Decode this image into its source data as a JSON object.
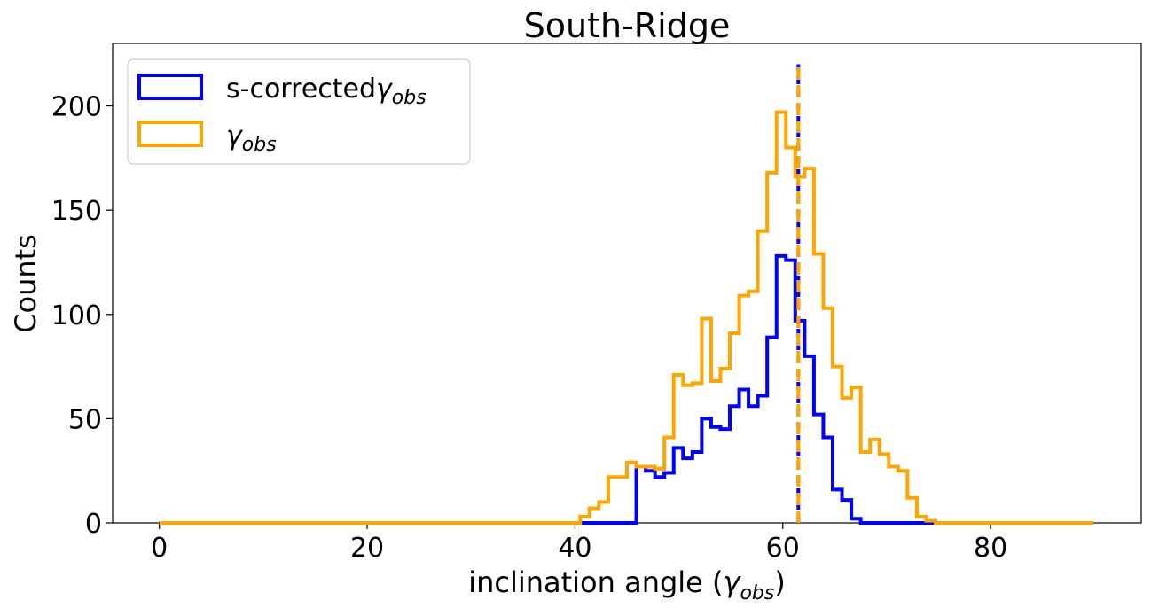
{
  "chart_data": {
    "type": "histogram",
    "title": "South-Ridge",
    "xlabel": "inclination angle (γ_obs)",
    "ylabel": "Counts",
    "xlim": [
      -4.5,
      94.5
    ],
    "ylim": [
      0,
      230
    ],
    "xticks": [
      0,
      20,
      40,
      60,
      80
    ],
    "yticks": [
      0,
      50,
      100,
      150,
      200
    ],
    "legend_position": "upper-left",
    "bin_width": 0.9,
    "series": [
      {
        "name": "s-corrected γ_obs",
        "color": "#0000ff",
        "bins": [
          {
            "x0": 0,
            "x1": 45.9,
            "y": 0
          },
          {
            "x0": 45.9,
            "x1": 46.8,
            "y": 27
          },
          {
            "x0": 46.8,
            "x1": 47.7,
            "y": 25
          },
          {
            "x0": 47.7,
            "x1": 48.6,
            "y": 22
          },
          {
            "x0": 48.6,
            "x1": 49.5,
            "y": 24
          },
          {
            "x0": 49.5,
            "x1": 50.4,
            "y": 36
          },
          {
            "x0": 50.4,
            "x1": 51.3,
            "y": 31
          },
          {
            "x0": 51.3,
            "x1": 52.2,
            "y": 34
          },
          {
            "x0": 52.2,
            "x1": 53.1,
            "y": 50
          },
          {
            "x0": 53.1,
            "x1": 54.0,
            "y": 46
          },
          {
            "x0": 54.0,
            "x1": 54.9,
            "y": 45
          },
          {
            "x0": 54.9,
            "x1": 55.8,
            "y": 56
          },
          {
            "x0": 55.8,
            "x1": 56.7,
            "y": 64
          },
          {
            "x0": 56.7,
            "x1": 57.6,
            "y": 56
          },
          {
            "x0": 57.6,
            "x1": 58.5,
            "y": 61
          },
          {
            "x0": 58.5,
            "x1": 59.4,
            "y": 89
          },
          {
            "x0": 59.4,
            "x1": 60.3,
            "y": 128
          },
          {
            "x0": 60.3,
            "x1": 61.2,
            "y": 126
          },
          {
            "x0": 61.2,
            "x1": 62.1,
            "y": 97
          },
          {
            "x0": 62.1,
            "x1": 63.0,
            "y": 80
          },
          {
            "x0": 63.0,
            "x1": 63.9,
            "y": 52
          },
          {
            "x0": 63.9,
            "x1": 64.8,
            "y": 41
          },
          {
            "x0": 64.8,
            "x1": 65.7,
            "y": 16
          },
          {
            "x0": 65.7,
            "x1": 66.6,
            "y": 11
          },
          {
            "x0": 66.6,
            "x1": 67.5,
            "y": 2
          },
          {
            "x0": 67.5,
            "x1": 89.9,
            "y": 0
          }
        ]
      },
      {
        "name": "γ_obs",
        "color": "#ffa500",
        "bins": [
          {
            "x0": 0,
            "x1": 40.5,
            "y": 0
          },
          {
            "x0": 40.5,
            "x1": 41.4,
            "y": 3
          },
          {
            "x0": 41.4,
            "x1": 42.3,
            "y": 7
          },
          {
            "x0": 42.3,
            "x1": 43.2,
            "y": 10
          },
          {
            "x0": 43.2,
            "x1": 44.1,
            "y": 22
          },
          {
            "x0": 44.1,
            "x1": 45.0,
            "y": 22
          },
          {
            "x0": 45.0,
            "x1": 45.9,
            "y": 29
          },
          {
            "x0": 45.9,
            "x1": 46.8,
            "y": 27
          },
          {
            "x0": 46.8,
            "x1": 47.7,
            "y": 27
          },
          {
            "x0": 47.7,
            "x1": 48.6,
            "y": 26
          },
          {
            "x0": 48.6,
            "x1": 49.5,
            "y": 41
          },
          {
            "x0": 49.5,
            "x1": 50.4,
            "y": 71
          },
          {
            "x0": 50.4,
            "x1": 51.3,
            "y": 66
          },
          {
            "x0": 51.3,
            "x1": 52.2,
            "y": 67
          },
          {
            "x0": 52.2,
            "x1": 53.1,
            "y": 98
          },
          {
            "x0": 53.1,
            "x1": 54.0,
            "y": 68
          },
          {
            "x0": 54.0,
            "x1": 54.9,
            "y": 74
          },
          {
            "x0": 54.9,
            "x1": 55.8,
            "y": 91
          },
          {
            "x0": 55.8,
            "x1": 56.7,
            "y": 109
          },
          {
            "x0": 56.7,
            "x1": 57.6,
            "y": 111
          },
          {
            "x0": 57.6,
            "x1": 58.5,
            "y": 140
          },
          {
            "x0": 58.5,
            "x1": 59.4,
            "y": 168
          },
          {
            "x0": 59.4,
            "x1": 60.3,
            "y": 197
          },
          {
            "x0": 60.3,
            "x1": 61.2,
            "y": 180
          },
          {
            "x0": 61.2,
            "x1": 62.1,
            "y": 166
          },
          {
            "x0": 62.1,
            "x1": 63.0,
            "y": 170
          },
          {
            "x0": 63.0,
            "x1": 63.9,
            "y": 129
          },
          {
            "x0": 63.9,
            "x1": 64.8,
            "y": 103
          },
          {
            "x0": 64.8,
            "x1": 65.7,
            "y": 75
          },
          {
            "x0": 65.7,
            "x1": 66.6,
            "y": 60
          },
          {
            "x0": 66.6,
            "x1": 67.5,
            "y": 65
          },
          {
            "x0": 67.5,
            "x1": 68.4,
            "y": 34
          },
          {
            "x0": 68.4,
            "x1": 69.3,
            "y": 40
          },
          {
            "x0": 69.3,
            "x1": 70.2,
            "y": 33
          },
          {
            "x0": 70.2,
            "x1": 71.1,
            "y": 27
          },
          {
            "x0": 71.1,
            "x1": 72.0,
            "y": 25
          },
          {
            "x0": 72.0,
            "x1": 72.9,
            "y": 12
          },
          {
            "x0": 72.9,
            "x1": 73.8,
            "y": 3
          },
          {
            "x0": 73.8,
            "x1": 74.7,
            "y": 1
          },
          {
            "x0": 74.7,
            "x1": 89.9,
            "y": 0
          }
        ]
      }
    ],
    "vlines": [
      {
        "x": 61.5,
        "color": "#0000ff",
        "style": "dashed",
        "series": "s-corrected γ_obs"
      },
      {
        "x": 61.5,
        "color": "#ffa500",
        "style": "dashed",
        "series": "γ_obs"
      }
    ],
    "legend": [
      {
        "label_prefix": "s-corrected",
        "symbol": "γ",
        "subscript": "obs",
        "color": "#0000ff"
      },
      {
        "label_prefix": "",
        "symbol": "γ",
        "subscript": "obs",
        "color": "#ffa500"
      }
    ]
  },
  "text": {
    "title": "South-Ridge",
    "ylabel": "Counts",
    "xlabel_prefix": "inclination angle (",
    "xlabel_symbol": "γ",
    "xlabel_sub": "obs",
    "xlabel_suffix": ")"
  }
}
